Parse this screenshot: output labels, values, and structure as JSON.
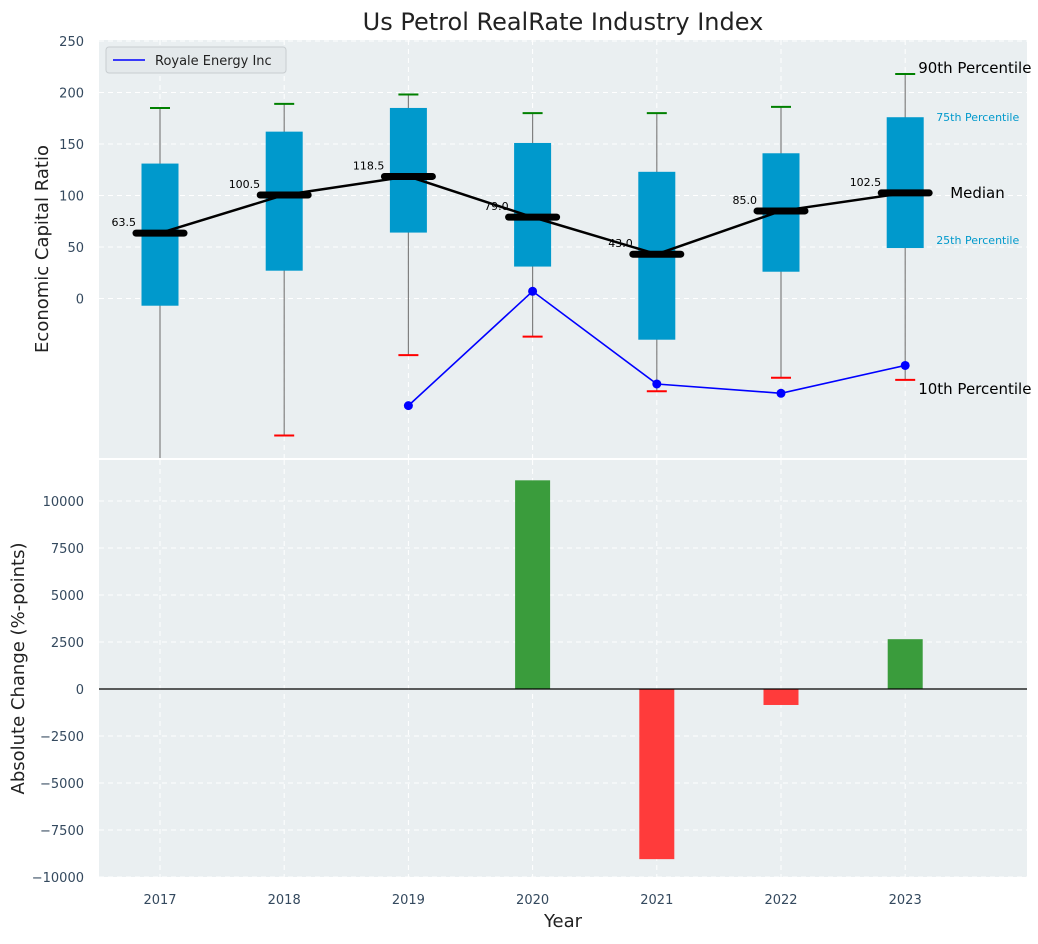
{
  "title": "Us Petrol RealRate Industry Index",
  "colors": {
    "panel_bg": "#eaeff1",
    "box": "#0099cc",
    "median": "#000000",
    "company": "#0000ff",
    "p90_cap": "#008000",
    "p10_cap": "#ff0000",
    "whisker": "#808080",
    "pos_bar": "#3a9c3c",
    "neg_bar": "#ff3b3b",
    "pct_label": "#0099cc"
  },
  "chart_data": [
    {
      "type": "box",
      "ylabel": "Economic Capital Ratio",
      "ylim": [
        -155,
        250
      ],
      "yticks": [
        0,
        50,
        100,
        150,
        200,
        250
      ],
      "categories": [
        "2017",
        "2018",
        "2019",
        "2020",
        "2021",
        "2022",
        "2023"
      ],
      "grid": true,
      "legend": {
        "position": "top-left",
        "entries": [
          "Royale Energy Inc"
        ]
      },
      "boxes": [
        {
          "year": "2017",
          "p10": -155,
          "q1": -7,
          "median": 63.5,
          "q3": 131,
          "p90": 185
        },
        {
          "year": "2018",
          "p10": -133,
          "q1": 27,
          "median": 100.5,
          "q3": 162,
          "p90": 189
        },
        {
          "year": "2019",
          "p10": -55,
          "q1": 64,
          "median": 118.5,
          "q3": 185,
          "p90": 198
        },
        {
          "year": "2020",
          "p10": -37,
          "q1": 31,
          "median": 79.0,
          "q3": 151,
          "p90": 180
        },
        {
          "year": "2021",
          "p10": -90,
          "q1": -40,
          "median": 43.0,
          "q3": 123,
          "p90": 180
        },
        {
          "year": "2022",
          "p10": -77,
          "q1": 26,
          "median": 85.0,
          "q3": 141,
          "p90": 186
        },
        {
          "year": "2023",
          "p10": -79,
          "q1": 49,
          "median": 102.5,
          "q3": 176,
          "p90": 218
        }
      ],
      "median_labels": [
        "63.5",
        "100.5",
        "118.5",
        "79.0",
        "43.0",
        "85.0",
        "102.5"
      ],
      "series": [
        {
          "name": "Royale Energy Inc",
          "x": [
            "2019",
            "2020",
            "2021",
            "2022",
            "2023"
          ],
          "values": [
            -104,
            7,
            -83,
            -92,
            -65
          ]
        }
      ],
      "annotations": {
        "p90": "90th Percentile",
        "p75": "75th Percentile",
        "median": "Median",
        "p25": "25th Percentile",
        "p10": "10th Percentile"
      }
    },
    {
      "type": "bar",
      "xlabel": "Year",
      "ylabel": "Absolute Change (%-points)",
      "ylim": [
        -10000,
        12500
      ],
      "yticks": [
        -10000,
        -7500,
        -5000,
        -2500,
        0,
        2500,
        5000,
        7500,
        10000
      ],
      "ytick_labels": [
        "−10000",
        "−7500",
        "−5000",
        "−2500",
        "0",
        "2500",
        "5000",
        "7500",
        "10000"
      ],
      "categories": [
        "2017",
        "2018",
        "2019",
        "2020",
        "2021",
        "2022",
        "2023"
      ],
      "values": [
        0,
        0,
        0,
        11100,
        -9050,
        -850,
        2650
      ],
      "grid": true
    }
  ]
}
